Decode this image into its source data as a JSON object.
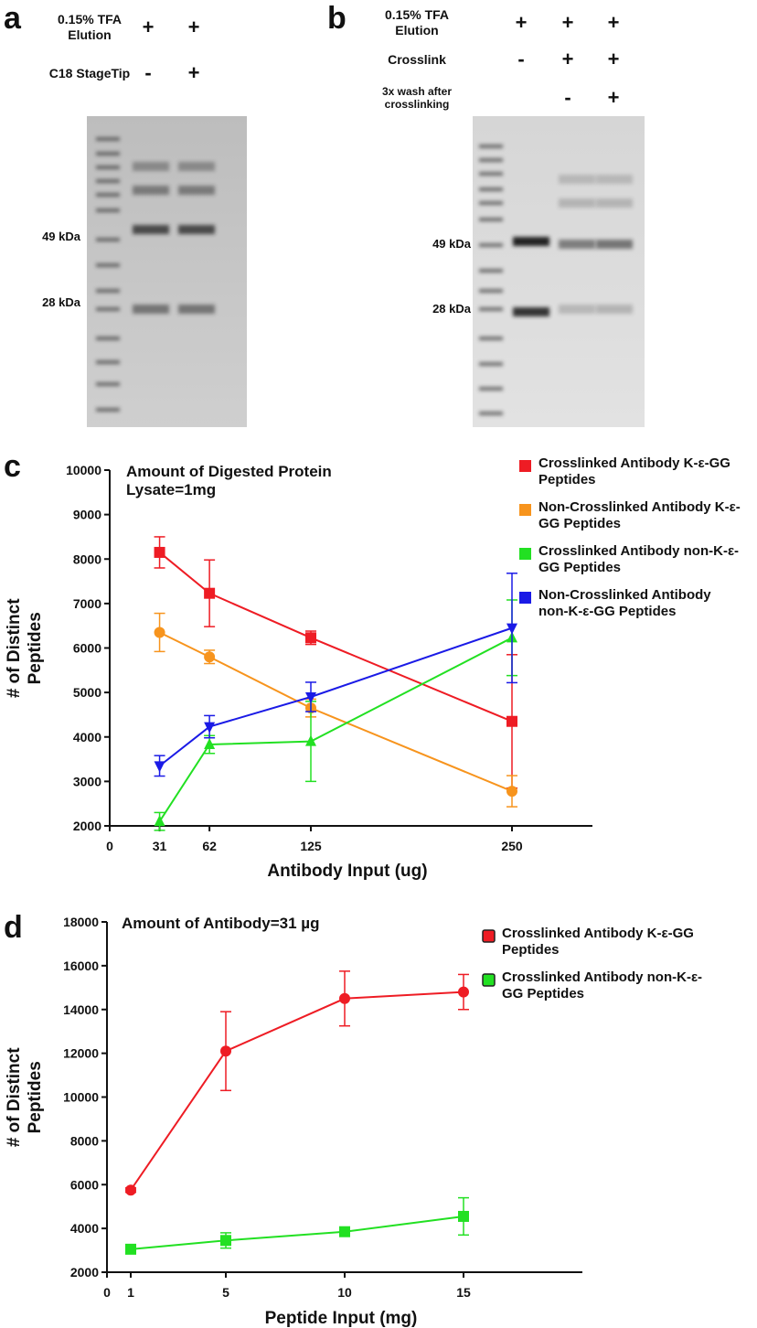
{
  "gels": [
    {
      "label": "a",
      "conditions": [
        {
          "name": "0.15% TFA Elution",
          "lanes": [
            "+",
            "+"
          ]
        },
        {
          "name": "C18 StageTip",
          "lanes": [
            "-",
            "+"
          ]
        }
      ],
      "markers": [
        "49 kDa",
        "28 kDa"
      ]
    },
    {
      "label": "b",
      "conditions": [
        {
          "name": "0.15% TFA Elution",
          "lanes": [
            "+",
            "+",
            "+"
          ]
        },
        {
          "name": "Crosslink",
          "lanes": [
            "-",
            "+",
            "+"
          ]
        },
        {
          "name": "3x wash after crosslinking",
          "lanes": [
            null,
            "-",
            "+"
          ]
        }
      ],
      "markers": [
        "49 kDa",
        "28 kDa"
      ]
    }
  ],
  "chart_data": [
    {
      "type": "line",
      "label": "c",
      "annotation": "Amount of Digested Protein Lysate=1mg",
      "xlabel": "Antibody Input (ug)",
      "ylabel": "# of Distinct Peptides",
      "x": [
        31,
        62,
        125,
        250
      ],
      "xlim": [
        0,
        300
      ],
      "xticks": [
        0,
        31,
        62,
        125,
        250
      ],
      "ylim": [
        2000,
        10000
      ],
      "yticks": [
        2000,
        3000,
        4000,
        5000,
        6000,
        7000,
        8000,
        9000,
        10000
      ],
      "series": [
        {
          "name": "Crosslinked Antibody K-ε-GG Peptides",
          "color": "#ee1c24",
          "marker": "square",
          "values": [
            8150,
            7230,
            6230,
            4350
          ],
          "errors": [
            350,
            750,
            150,
            1500
          ]
        },
        {
          "name": "Non-Crosslinked Antibody K-ε-GG Peptides",
          "color": "#f7941d",
          "marker": "circle",
          "values": [
            6350,
            5800,
            4650,
            2780
          ],
          "errors": [
            430,
            150,
            200,
            350
          ]
        },
        {
          "name": "Crosslinked Antibody non-K-ε-GG Peptides",
          "color": "#22e022",
          "marker": "triangle-up",
          "values": [
            2100,
            3830,
            3900,
            6230
          ],
          "errors": [
            200,
            200,
            900,
            850
          ]
        },
        {
          "name": "Non-Crosslinked Antibody non-K-ε-GG Peptides",
          "color": "#1a1ae6",
          "marker": "triangle-down",
          "values": [
            3350,
            4230,
            4900,
            6450
          ],
          "errors": [
            230,
            250,
            330,
            1230
          ]
        }
      ]
    },
    {
      "type": "line",
      "label": "d",
      "annotation": "Amount of Antibody=31 µg",
      "xlabel": "Peptide Input (mg)",
      "ylabel": "# of Distinct Peptides",
      "x": [
        1,
        5,
        10,
        15
      ],
      "xlim": [
        0,
        20
      ],
      "xticks": [
        0,
        1,
        5,
        10,
        15
      ],
      "ylim": [
        2000,
        18000
      ],
      "yticks": [
        2000,
        4000,
        6000,
        8000,
        10000,
        12000,
        14000,
        16000,
        18000
      ],
      "series": [
        {
          "name": "Crosslinked Antibody K-ε-GG Peptides",
          "color": "#ee1c24",
          "marker": "circle",
          "values": [
            5750,
            12100,
            14500,
            14800
          ],
          "errors": [
            100,
            1800,
            1250,
            800
          ]
        },
        {
          "name": "Crosslinked Antibody non-K-ε-GG Peptides",
          "color": "#22e022",
          "marker": "square",
          "values": [
            3050,
            3450,
            3850,
            4550
          ],
          "errors": [
            100,
            350,
            100,
            850
          ]
        }
      ]
    }
  ]
}
